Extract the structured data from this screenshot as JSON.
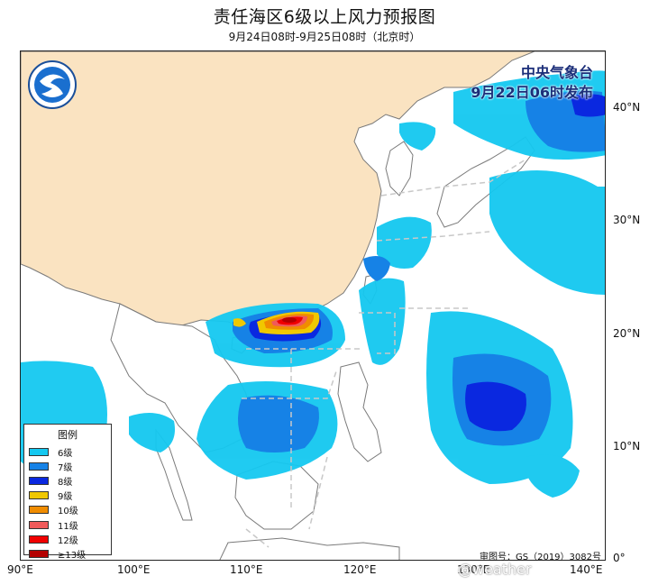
{
  "title": "责任海区6级以上风力预报图",
  "subtitle": "9月24日08时-9月25日08时（北京时）",
  "publisher": {
    "line1": "中央气象台",
    "line2": "9月22日06时发布"
  },
  "axes": {
    "lon_labels": [
      "90°E",
      "100°E",
      "110°E",
      "120°E",
      "130°E",
      "140°E"
    ],
    "lat_labels": [
      "40°N",
      "30°N",
      "20°N",
      "10°N",
      "0°"
    ]
  },
  "legend": {
    "title": "图例",
    "items": [
      {
        "label": "6级",
        "color": "#14c8f0"
      },
      {
        "label": "7级",
        "color": "#1682e6"
      },
      {
        "label": "8级",
        "color": "#0a28e0"
      },
      {
        "label": "9级",
        "color": "#f0c800"
      },
      {
        "label": "10级",
        "color": "#f08c00"
      },
      {
        "label": "11级",
        "color": "#f05a5a"
      },
      {
        "label": "12级",
        "color": "#f00000"
      },
      {
        "label": "≥13级",
        "color": "#b40000"
      }
    ]
  },
  "review_number": "审图号：GS（2019）3082号",
  "watermark": "@weather",
  "colors": {
    "land": "#fae3c1",
    "sea": "#ffffff",
    "border": "#7a7a7a",
    "dashed_zone": "#c8c8c8"
  }
}
